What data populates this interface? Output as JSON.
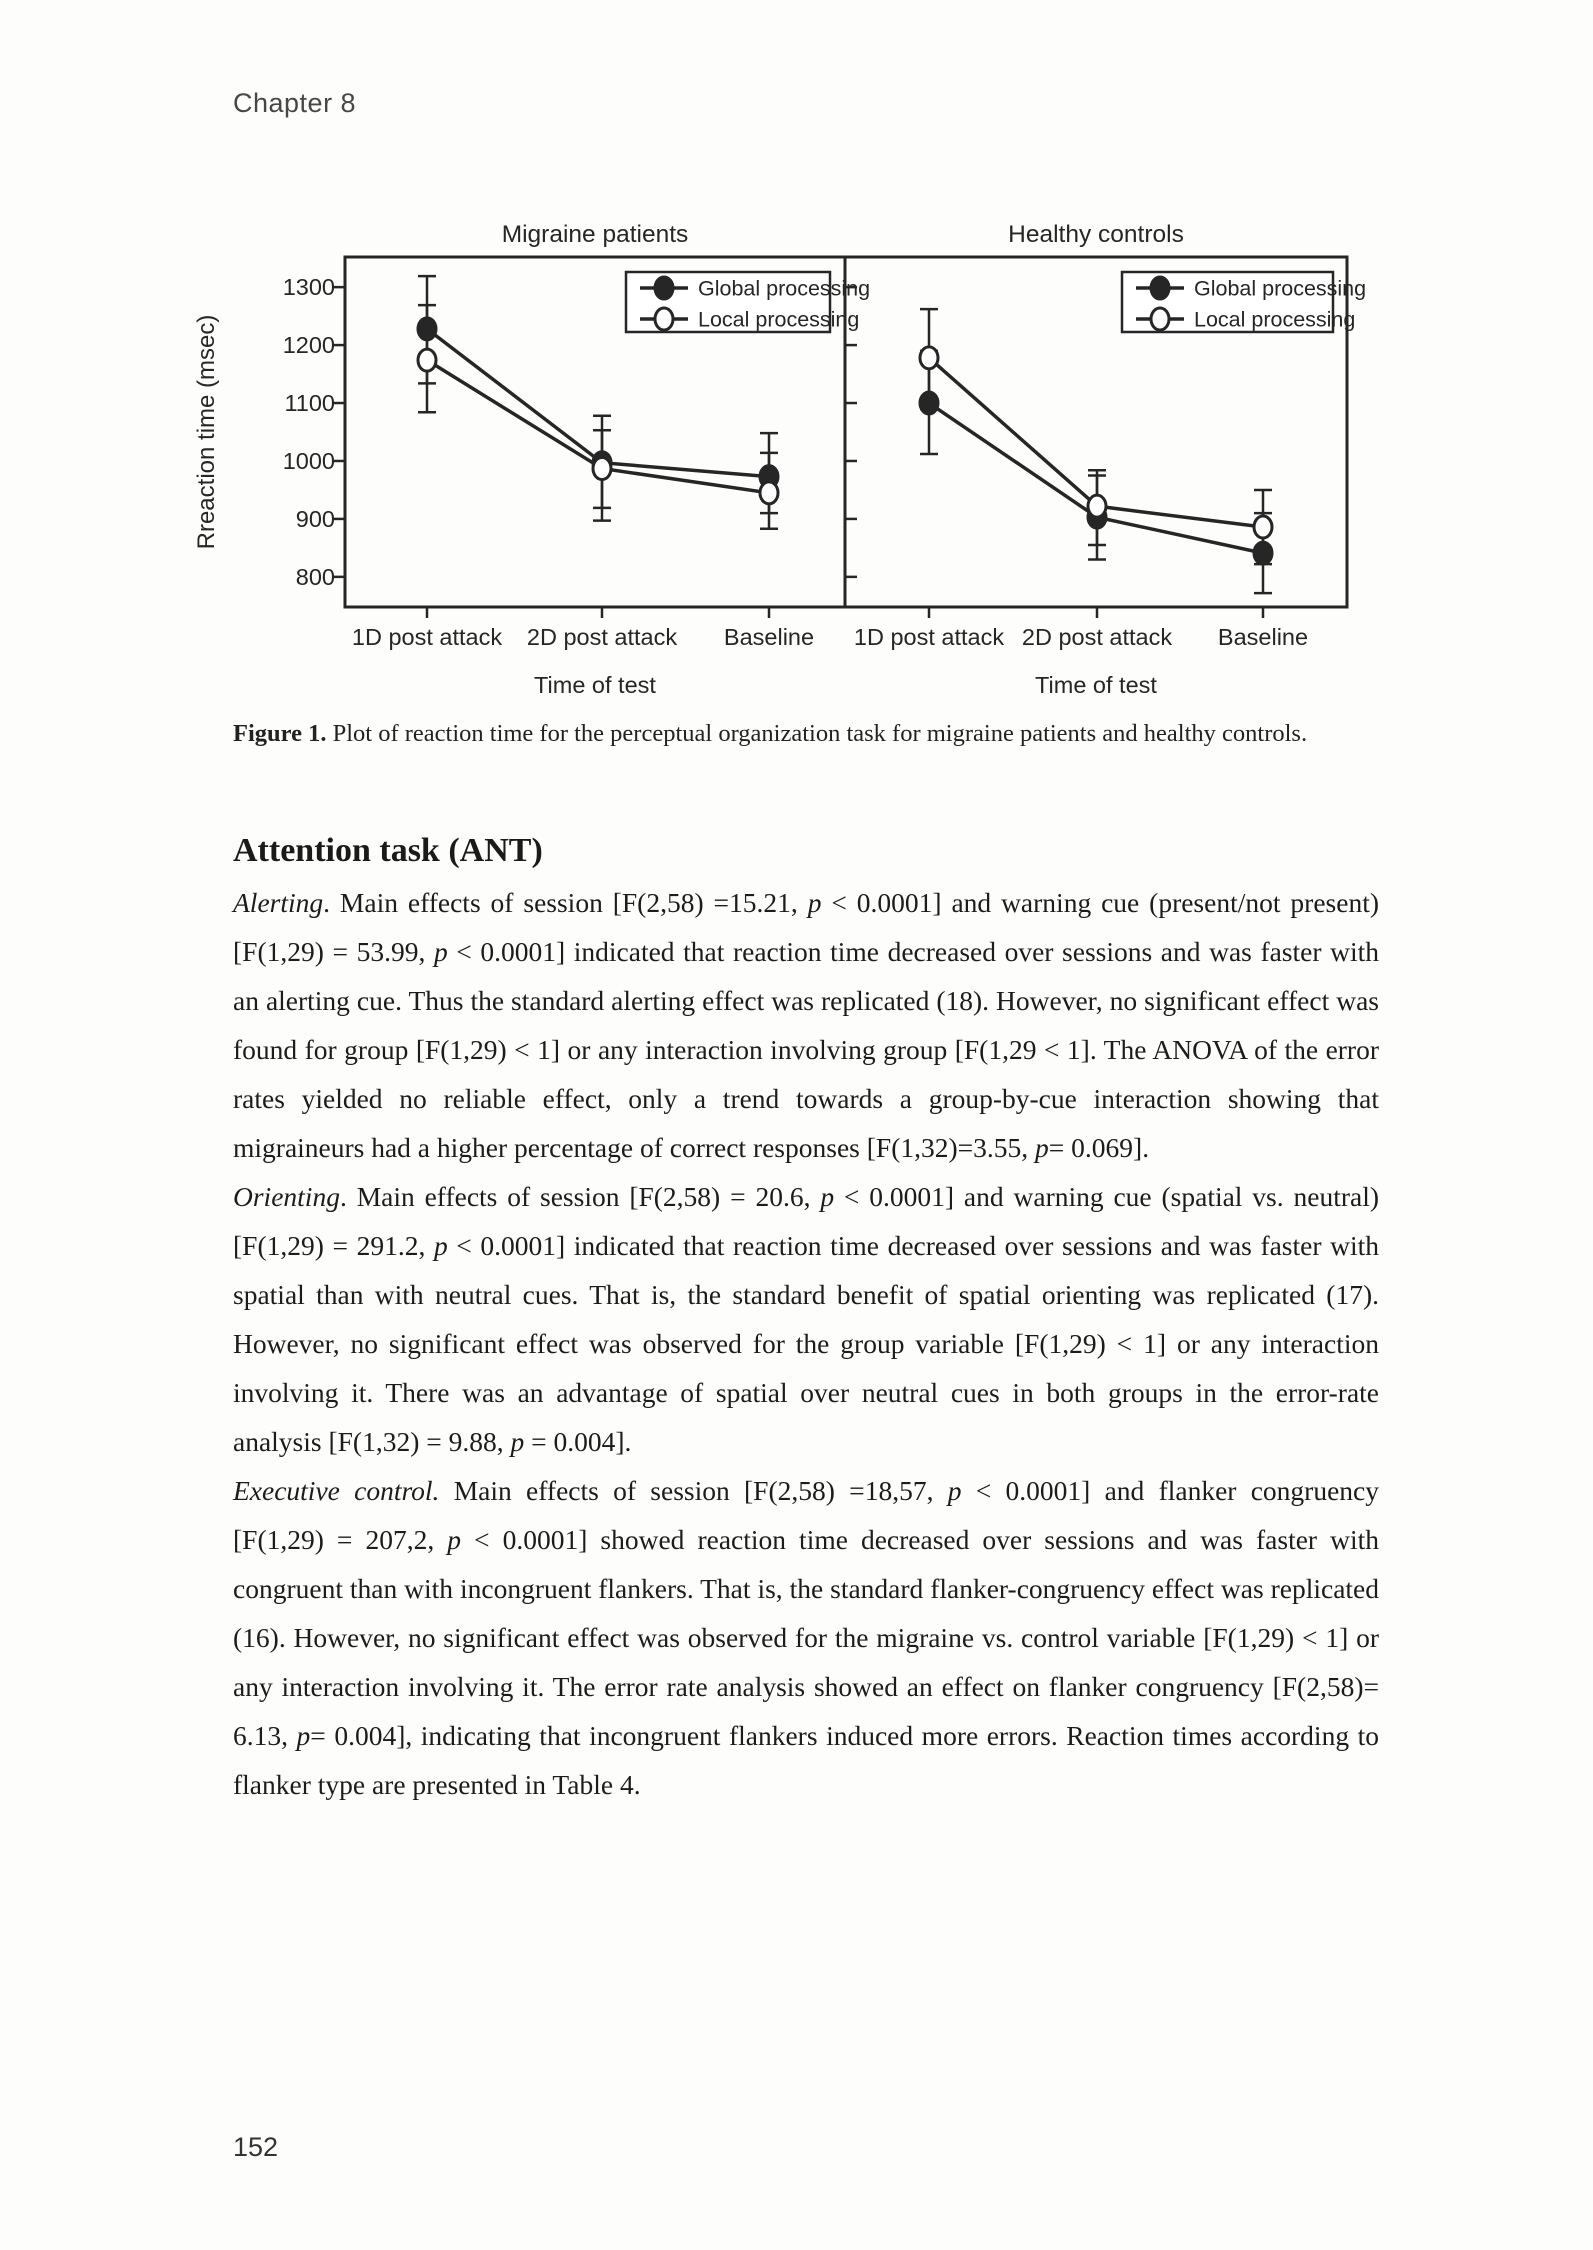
{
  "page": {
    "header": "Chapter 8",
    "page_number": "152"
  },
  "figure": {
    "caption_label": "Figure 1.",
    "caption_text": " Plot of reaction time for the perceptual organization task for migraine patients and healthy controls."
  },
  "section": {
    "heading": "Attention task (ANT)",
    "paragraphs": [
      "*Alerting*. Main effects of session [F(2,58) =15.21, *p* < 0.0001] and warning cue (present/not present) [F(1,29) = 53.99, *p* < 0.0001] indicated that reaction time decreased over sessions and was faster with an alerting cue. Thus the standard alerting effect was replicated (18). However, no significant effect was found for group [F(1,29) < 1] or any interaction involving group [F(1,29 < 1]. The ANOVA of the error rates yielded no reliable effect, only a trend towards a group-by-cue interaction showing that migraineurs had a higher percentage of correct responses [F(1,32)=3.55, *p*= 0.069].",
      "*Orienting*. Main effects of session [F(2,58) = 20.6, *p* < 0.0001] and warning cue (spatial vs. neutral) [F(1,29) = 291.2, *p* < 0.0001] indicated that reaction time decreased over sessions and was faster with spatial than with neutral cues. That is, the standard benefit of spatial orienting was replicated (17). However, no significant effect was observed for the group variable [F(1,29) < 1] or any interaction involving it. There was an advantage of spatial over neutral cues in both groups in the error-rate analysis [F(1,32) = 9.88, *p* = 0.004].",
      "*Executive control.* Main effects of session [F(2,58) =18,57, *p* < 0.0001] and flanker congruency [F(1,29) = 207,2, *p* < 0.0001] showed reaction time decreased over sessions and was faster with congruent than with incongruent flankers. That is, the standard flanker-congruency effect was replicated (16). However, no significant effect was observed for the migraine vs. control variable [F(1,29) < 1] or any interaction involving it. The error rate analysis showed an effect on flanker congruency [F(2,58)= 6.13, *p*= 0.004], indicating that incongruent flankers induced more errors. Reaction times according to flanker type are presented in Table 4."
    ]
  },
  "chart_data": {
    "type": "line",
    "ink_color": "#262626",
    "ylabel": "Rreaction time (msec)",
    "yticks": [
      800,
      900,
      1000,
      1100,
      1200,
      1300
    ],
    "ylim": [
      748,
      1352
    ],
    "categories": [
      "1D post attack",
      "2D post attack",
      "Baseline"
    ],
    "xlabel": "Time of test",
    "legend": [
      "Global processing",
      "Local processing"
    ],
    "legend_position": "top-right",
    "grid": false,
    "panels": [
      {
        "title": "Migraine patients",
        "series": [
          {
            "name": "Global processing",
            "marker": "filled",
            "values": [
              1228,
              997,
              973
            ],
            "err_low": [
              1134,
              919,
              910
            ],
            "err_high": [
              1319,
              1078,
              1048
            ]
          },
          {
            "name": "Local processing",
            "marker": "open",
            "values": [
              1174,
              987,
              945
            ],
            "err_low": [
              1084,
              897,
              883
            ],
            "err_high": [
              1269,
              1053,
              1014
            ]
          }
        ]
      },
      {
        "title": "Healthy controls",
        "series": [
          {
            "name": "Global processing",
            "marker": "filled",
            "values": [
              1100,
              903,
              841
            ],
            "err_low": [
              1012,
              830,
              772
            ],
            "err_high": [
              1190,
              975,
              910
            ]
          },
          {
            "name": "Local processing",
            "marker": "open",
            "values": [
              1178,
              922,
              886
            ],
            "err_low": [
              1090,
              855,
              822
            ],
            "err_high": [
              1262,
              984,
              950
            ]
          }
        ]
      }
    ]
  }
}
